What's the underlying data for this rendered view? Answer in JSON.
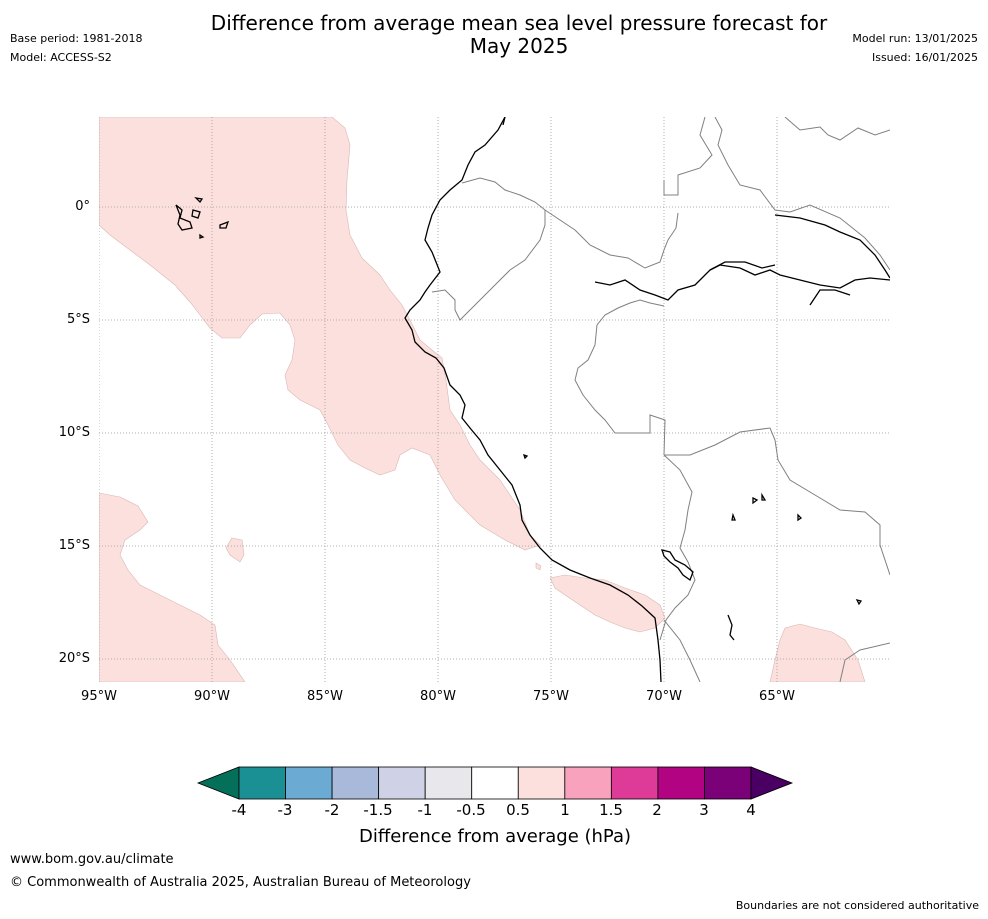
{
  "header": {
    "base_period": "Base period: 1981-2018",
    "model": "Model: ACCESS-S2",
    "title_line1": "Difference from average mean sea level pressure forecast for",
    "title_line2": "May 2025",
    "model_run": "Model run: 13/01/2025",
    "issued": "Issued: 16/01/2025"
  },
  "map": {
    "region": "Eastern Pacific / western South America",
    "lat_ticks": [
      "0°",
      "5°S",
      "10°S",
      "15°S",
      "20°S"
    ],
    "lon_ticks": [
      "95°W",
      "90°W",
      "85°W",
      "80°W",
      "75°W",
      "70°W",
      "65°W"
    ],
    "lon_range": [
      -95,
      -60
    ],
    "lat_range": [
      -21,
      4
    ],
    "anomaly_fill_color": "#fbe0dd",
    "anomaly_category": "0.5 to 1",
    "land_outline_color": "#000000",
    "border_color": "#808080"
  },
  "colorbar": {
    "ticks": [
      "-4",
      "-3",
      "-2",
      "-1.5",
      "-1",
      "-0.5",
      "0.5",
      "1",
      "1.5",
      "2",
      "3",
      "4"
    ],
    "colors": [
      "#1a9095",
      "#6aaad3",
      "#a8b9da",
      "#cfd1e6",
      "#e8e8ec",
      "#ffffff",
      "#fce0dd",
      "#f8a2bd",
      "#de3a98",
      "#b20482",
      "#7a0178"
    ],
    "under_color": "#04705a",
    "over_color": "#4a0063",
    "label": "Difference from average (hPa)"
  },
  "footer": {
    "website": "www.bom.gov.au/climate",
    "copyright": "© Commonwealth of Australia 2025, Australian Bureau of Meteorology",
    "disclaimer": "Boundaries are not considered authoritative"
  }
}
